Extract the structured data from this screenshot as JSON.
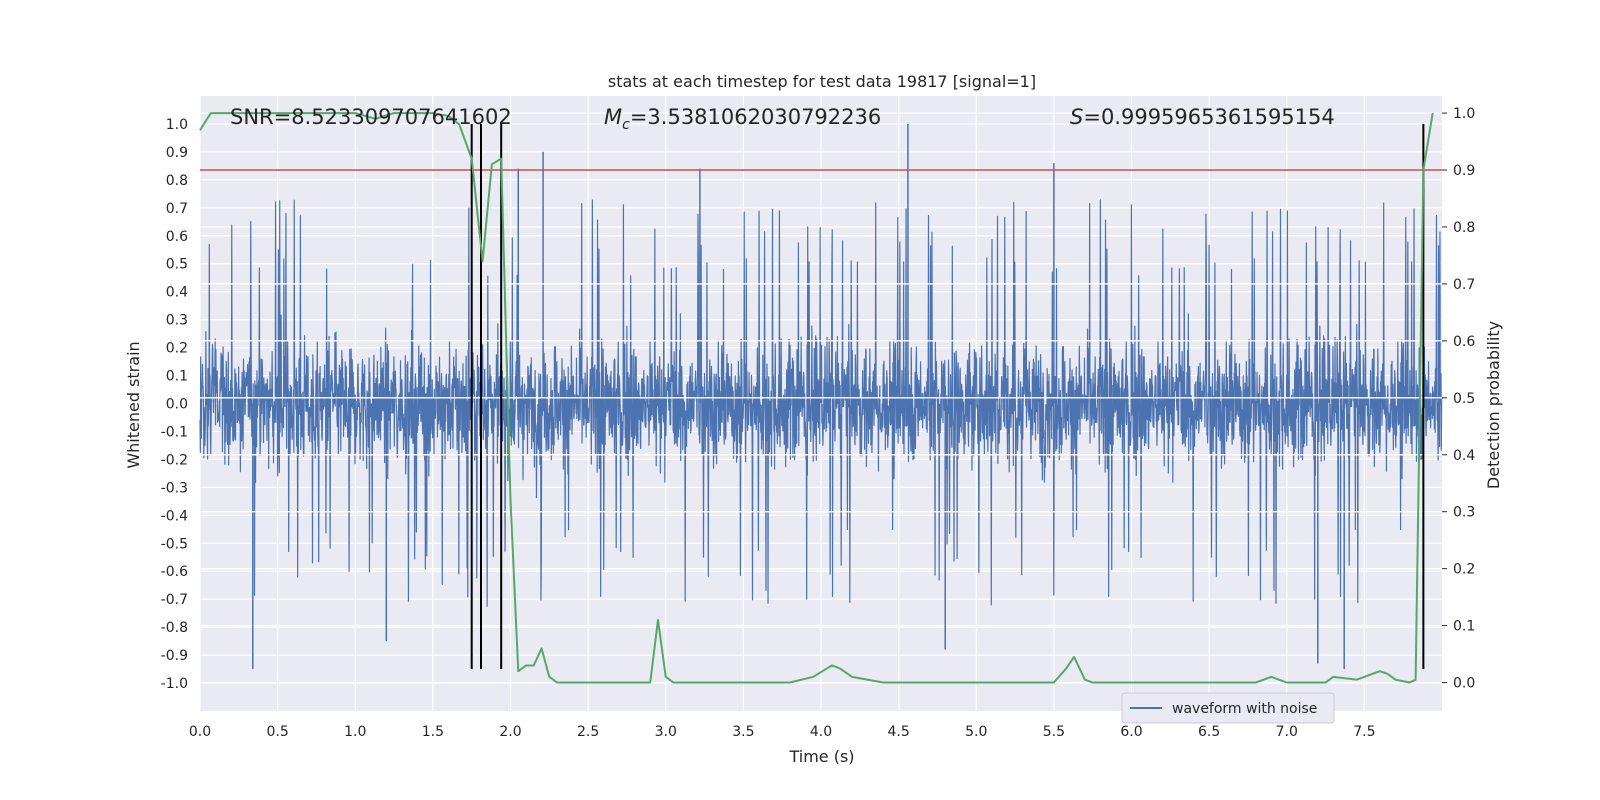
{
  "chart_data": {
    "type": "line",
    "title": "stats at each timestep for test data 19817 [signal=1]",
    "xlabel": "Time (s)",
    "ylabel": "Whitened strain",
    "ylabel_right": "Detection probability",
    "xlim": [
      0,
      8
    ],
    "ylim": [
      -1.1,
      1.1
    ],
    "ylim_right": [
      -0.05,
      1.03
    ],
    "x_ticks": [
      "0.0",
      "0.5",
      "1.0",
      "1.5",
      "2.0",
      "2.5",
      "3.0",
      "3.5",
      "4.0",
      "4.5",
      "5.0",
      "5.5",
      "6.0",
      "6.5",
      "7.0",
      "7.5"
    ],
    "y_ticks": [
      "1.0",
      "0.9",
      "0.8",
      "0.7",
      "0.6",
      "0.5",
      "0.4",
      "0.3",
      "0.2",
      "0.1",
      "0.0",
      "-0.1",
      "-0.2",
      "-0.3",
      "-0.4",
      "-0.5",
      "-0.6",
      "-0.7",
      "-0.8",
      "-0.9",
      "-1.0"
    ],
    "y_ticks_right": [
      "1.0",
      "0.9",
      "0.8",
      "0.7",
      "0.6",
      "0.5",
      "0.4",
      "0.3",
      "0.2",
      "0.1",
      "0.0"
    ],
    "grid": true,
    "legend": {
      "entries": [
        "waveform with noise"
      ],
      "placement": "lower-right"
    },
    "annotations": {
      "snr": "SNR=8.523309707641602",
      "mc_symbol": "M",
      "mc_sub": "c",
      "mc_value": "=3.5381062030792236",
      "s_symbol": "S",
      "s_value": "=0.9995965361595154"
    },
    "threshold": {
      "value": 0.9,
      "axis": "right",
      "color": "#c44e52"
    },
    "vertical_lines": [
      1.75,
      1.81,
      1.94,
      7.88
    ],
    "series": [
      {
        "name": "waveform with noise",
        "axis": "left",
        "color": "#4c72b0",
        "description_values": {
          "duration": 8,
          "noise_std": 0.21,
          "peak_positive": 1.0,
          "peak_negative": -0.95
        },
        "spikes": [
          [
            0.34,
            -0.95
          ],
          [
            1.2,
            -0.85
          ],
          [
            1.94,
            0.87
          ],
          [
            2.05,
            0.84
          ],
          [
            2.21,
            0.9
          ],
          [
            3.22,
            0.84
          ],
          [
            4.56,
            1.0
          ],
          [
            4.8,
            -0.88
          ],
          [
            5.5,
            0.86
          ],
          [
            7.2,
            -0.93
          ],
          [
            7.37,
            -0.95
          ]
        ]
      },
      {
        "name": "detection probability",
        "axis": "right",
        "color": "#55a868",
        "x": [
          0.0,
          0.07,
          0.5,
          1.0,
          1.13,
          1.25,
          1.5,
          1.6,
          1.67,
          1.75,
          1.82,
          1.88,
          1.94,
          2.0,
          2.05,
          2.1,
          2.15,
          2.2,
          2.25,
          2.3,
          2.5,
          2.8,
          2.9,
          2.95,
          3.0,
          3.05,
          3.5,
          3.8,
          3.95,
          4.07,
          4.12,
          4.2,
          4.4,
          4.8,
          5.5,
          5.58,
          5.63,
          5.7,
          5.75,
          6.0,
          6.8,
          6.9,
          7.0,
          7.25,
          7.3,
          7.45,
          7.6,
          7.65,
          7.7,
          7.79,
          7.83,
          7.88,
          7.94
        ],
        "y": [
          0.97,
          1.0,
          1.0,
          1.0,
          0.99,
          1.0,
          1.0,
          0.995,
          0.98,
          0.92,
          0.74,
          0.91,
          0.92,
          0.32,
          0.02,
          0.03,
          0.03,
          0.06,
          0.01,
          0.0,
          0.0,
          0.0,
          0.0,
          0.11,
          0.01,
          0.0,
          0.0,
          0.0,
          0.01,
          0.03,
          0.025,
          0.01,
          0.0,
          0.0,
          0.0,
          0.025,
          0.045,
          0.005,
          0.0,
          0.0,
          0.0,
          0.01,
          0.0,
          0.0,
          0.01,
          0.005,
          0.02,
          0.015,
          0.005,
          0.0,
          0.005,
          0.9,
          1.0
        ]
      }
    ]
  }
}
